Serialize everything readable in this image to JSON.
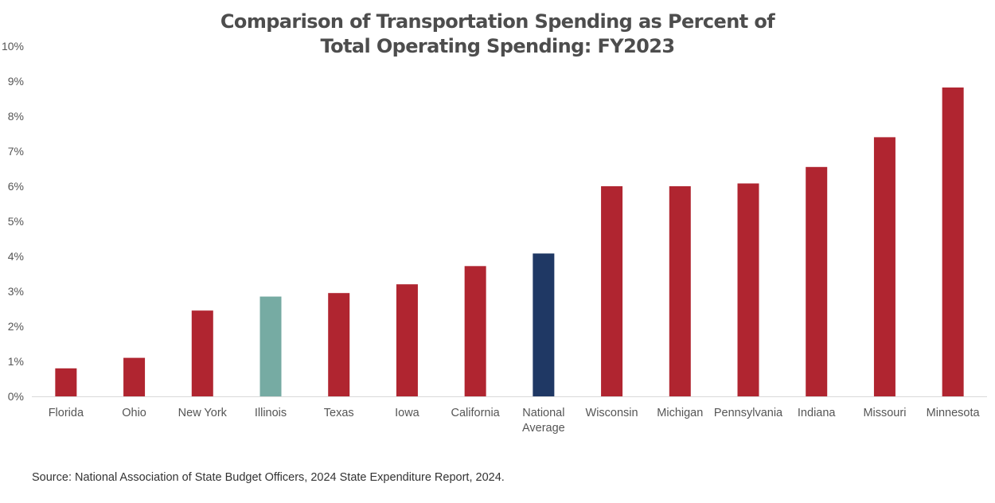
{
  "chart_data": {
    "type": "bar",
    "title": "Comparison of Transportation Spending as Percent of Total Operating Spending: FY2023",
    "title_lines": [
      "Comparison of Transportation Spending as Percent of",
      "Total Operating Spending: FY2023"
    ],
    "categories": [
      "Florida",
      "Ohio",
      "New York",
      "Illinois",
      "Texas",
      "Iowa",
      "California",
      "National Average",
      "Wisconsin",
      "Michigan",
      "Pennsylvania",
      "Indiana",
      "Missouri",
      "Minnesota"
    ],
    "category_lines": [
      [
        "Florida"
      ],
      [
        "Ohio"
      ],
      [
        "New York"
      ],
      [
        "Illinois"
      ],
      [
        "Texas"
      ],
      [
        "Iowa"
      ],
      [
        "California"
      ],
      [
        "National",
        "Average"
      ],
      [
        "Wisconsin"
      ],
      [
        "Michigan"
      ],
      [
        "Pennsylvania"
      ],
      [
        "Indiana"
      ],
      [
        "Missouri"
      ],
      [
        "Minnesota"
      ]
    ],
    "values": [
      0.8,
      1.1,
      2.45,
      2.85,
      2.95,
      3.2,
      3.72,
      4.08,
      6.0,
      6.0,
      6.08,
      6.55,
      7.4,
      8.82
    ],
    "unit": "%",
    "xlabel": "",
    "ylabel": "",
    "ylim": [
      0,
      10
    ],
    "yticks": [
      0,
      1,
      2,
      3,
      4,
      5,
      6,
      7,
      8,
      9,
      10
    ],
    "ytick_labels": [
      "0%",
      "1%",
      "2%",
      "3%",
      "4%",
      "5%",
      "6%",
      "7%",
      "8%",
      "9%",
      "10%"
    ],
    "grid": false,
    "legend": "none",
    "colors": {
      "default": "#b02530",
      "Illinois": "#76aba3",
      "National Average": "#1f3864"
    }
  },
  "footer": {
    "source": "Source: National Association of State Budget Officers, 2024 State Expenditure Report, 2024."
  }
}
